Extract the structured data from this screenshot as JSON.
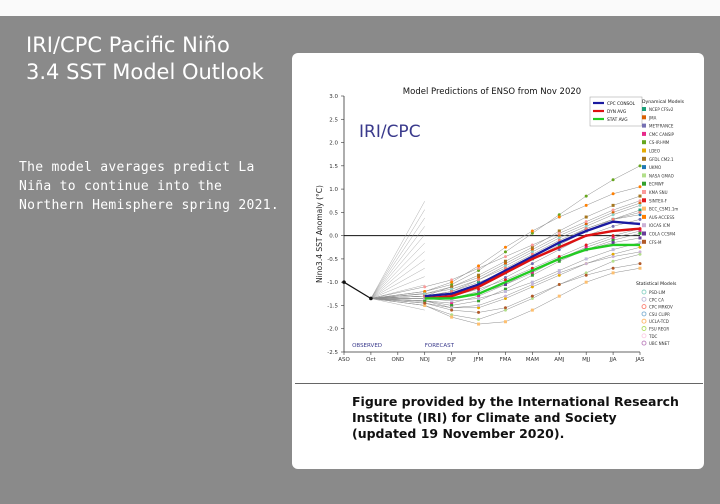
{
  "slide": {
    "title_line1": "IRI/CPC Pacific Niño",
    "title_line2": "3.4 SST Model Outlook",
    "body": "The model averages predict La Niña to continue into the Northern Hemisphere spring 2021.",
    "caption": "Figure provided by the International Research Institute (IRI) for Climate and Society (updated 19 November 2020)."
  },
  "chart_data": {
    "type": "line",
    "title": "Model Predictions of ENSO from Nov 2020",
    "watermark": "IRI/CPC",
    "ylabel": "Nino3.4 SST Anomaly (°C)",
    "ylim": [
      -2.5,
      3.0
    ],
    "yticks": [
      -2.5,
      -2.0,
      -1.5,
      -1.0,
      -0.5,
      0.0,
      0.5,
      1.0,
      1.5,
      2.0,
      2.5,
      3.0
    ],
    "ytick_labels": [
      "-2.5",
      "-2.0",
      "-1.5",
      "-1.0",
      "-0.5",
      "0.0",
      "0.5",
      "1.0",
      "1.5",
      "2.0",
      "2.5",
      "3.0"
    ],
    "categories": [
      "ASO",
      "Oct",
      "OND",
      "NDJ",
      "DJF",
      "JFM",
      "FMA",
      "MAM",
      "AMJ",
      "MJJ",
      "JJA",
      "JAS"
    ],
    "observed_label": "OBSERVED",
    "forecast_label": "FORECAST",
    "grid": false,
    "legend_position": "right",
    "averages": [
      {
        "name": "CPC CONSOL",
        "color": "#1a1aa0",
        "values": [
          null,
          null,
          null,
          -1.3,
          -1.25,
          -1.05,
          -0.75,
          -0.45,
          -0.15,
          0.1,
          0.3,
          0.25
        ]
      },
      {
        "name": "DYN AVG",
        "color": "#dd1111",
        "values": [
          null,
          null,
          null,
          -1.35,
          -1.3,
          -1.1,
          -0.8,
          -0.5,
          -0.25,
          0.0,
          0.1,
          0.15
        ]
      },
      {
        "name": "STAT AVG",
        "color": "#22cc22",
        "values": [
          null,
          null,
          null,
          -1.35,
          -1.35,
          -1.25,
          -1.0,
          -0.75,
          -0.5,
          -0.3,
          -0.2,
          -0.2
        ]
      }
    ],
    "observed": [
      -1.0,
      -1.35
    ],
    "dynamical_legend_header": "Dynamical Models",
    "dynamical_legend": [
      {
        "name": "NCEP CFSv2",
        "color": "#1b9e77"
      },
      {
        "name": "JMA",
        "color": "#d95f02"
      },
      {
        "name": "METFRANCE",
        "color": "#7570b3"
      },
      {
        "name": "CMC CANSIP",
        "color": "#e7298a"
      },
      {
        "name": "CS-IRI-MM",
        "color": "#66a61e"
      },
      {
        "name": "LDEO",
        "color": "#e6ab02"
      },
      {
        "name": "GFDL CM2.1",
        "color": "#a6761d"
      },
      {
        "name": "UKMO",
        "color": "#1f78b4"
      },
      {
        "name": "NASA GMAO",
        "color": "#b2df8a"
      },
      {
        "name": "ECMWF",
        "color": "#33a02c"
      },
      {
        "name": "KMA SNU",
        "color": "#fb9a99"
      },
      {
        "name": "SINTEX-F",
        "color": "#e31a1c"
      },
      {
        "name": "BCC_CSM1.1m",
        "color": "#fdbf6f"
      },
      {
        "name": "AUS-ACCESS",
        "color": "#ff7f00"
      },
      {
        "name": "IOCAS ICM",
        "color": "#cab2d6"
      },
      {
        "name": "COLA CCSM4",
        "color": "#6a3d9a"
      },
      {
        "name": "CFS-M",
        "color": "#b15928"
      }
    ],
    "statistical_legend_header": "Statistical Models",
    "statistical_legend": [
      {
        "name": "PSD-LIM",
        "color": "#8dd3c7"
      },
      {
        "name": "CPC CA",
        "color": "#bebada"
      },
      {
        "name": "CPC MRKOV",
        "color": "#fb8072"
      },
      {
        "name": "CSU CLIPR",
        "color": "#80b1d3"
      },
      {
        "name": "UCLA-TCD",
        "color": "#fdb462"
      },
      {
        "name": "FSU REGR",
        "color": "#b3de69"
      },
      {
        "name": "TDC",
        "color": "#fccde5"
      },
      {
        "name": "UBC NNET",
        "color": "#bc80bd"
      }
    ],
    "members": [
      [
        -1.3,
        -1.2,
        -1.0,
        -0.8,
        -0.5,
        -0.2,
        0.1,
        0.35,
        0.55
      ],
      [
        -1.3,
        -1.1,
        -0.9,
        -0.6,
        -0.3,
        0.0,
        0.25,
        0.5,
        0.7
      ],
      [
        -1.35,
        -1.35,
        -1.2,
        -0.9,
        -0.6,
        -0.3,
        0.0,
        0.2,
        0.35
      ],
      [
        -1.4,
        -1.45,
        -1.3,
        -1.05,
        -0.8,
        -0.5,
        -0.25,
        -0.05,
        0.1
      ],
      [
        -1.2,
        -1.05,
        -0.75,
        -0.35,
        0.05,
        0.45,
        0.85,
        1.2,
        1.5
      ],
      [
        -1.4,
        -1.55,
        -1.55,
        -1.35,
        -1.1,
        -0.85,
        -0.6,
        -0.4,
        -0.25
      ],
      [
        -1.25,
        -1.1,
        -0.85,
        -0.55,
        -0.25,
        0.1,
        0.4,
        0.65,
        0.85
      ],
      [
        -1.3,
        -1.25,
        -1.05,
        -0.75,
        -0.45,
        -0.15,
        0.15,
        0.35,
        0.45
      ],
      [
        -1.5,
        -1.7,
        -1.8,
        -1.6,
        -1.35,
        -1.05,
        -0.8,
        -0.55,
        -0.4
      ],
      [
        -1.4,
        -1.5,
        -1.4,
        -1.15,
        -0.85,
        -0.55,
        -0.3,
        -0.1,
        0.05
      ],
      [
        -1.1,
        -0.95,
        -0.7,
        -0.45,
        -0.2,
        0.05,
        0.3,
        0.55,
        0.75
      ],
      [
        -1.35,
        -1.3,
        -1.15,
        -0.95,
        -0.7,
        -0.45,
        -0.2,
        0.0,
        0.15
      ],
      [
        -1.5,
        -1.75,
        -1.9,
        -1.85,
        -1.6,
        -1.3,
        -1.0,
        -0.8,
        -0.7
      ],
      [
        -1.2,
        -1.0,
        -0.65,
        -0.25,
        0.1,
        0.4,
        0.65,
        0.9,
        1.05
      ],
      [
        -1.45,
        -1.55,
        -1.5,
        -1.3,
        -1.05,
        -0.8,
        -0.6,
        -0.45,
        -0.35
      ],
      [
        -1.3,
        -1.35,
        -1.25,
        -1.05,
        -0.75,
        -0.5,
        -0.3,
        -0.15,
        -0.05
      ],
      [
        -1.45,
        -1.6,
        -1.65,
        -1.55,
        -1.3,
        -1.05,
        -0.85,
        -0.7,
        -0.6
      ],
      [
        -1.25,
        -1.15,
        -0.95,
        -0.65,
        -0.35,
        -0.05,
        0.2,
        0.45,
        0.65
      ],
      [
        -1.35,
        -1.4,
        -1.35,
        -1.2,
        -1.0,
        -0.75,
        -0.5,
        -0.3,
        -0.15
      ],
      [
        -1.3,
        -1.2,
        -0.95,
        -0.7,
        -0.4,
        -0.1,
        0.15,
        0.35,
        0.5
      ]
    ],
    "member_colors": [
      "#1b9e77",
      "#d95f02",
      "#7570b3",
      "#e7298a",
      "#66a61e",
      "#e6ab02",
      "#a6761d",
      "#1f78b4",
      "#b2df8a",
      "#33a02c",
      "#fb9a99",
      "#e31a1c",
      "#fdbf6f",
      "#ff7f00",
      "#cab2d6",
      "#6a3d9a",
      "#b15928",
      "#8dd3c7",
      "#bebada",
      "#fb8072"
    ]
  }
}
